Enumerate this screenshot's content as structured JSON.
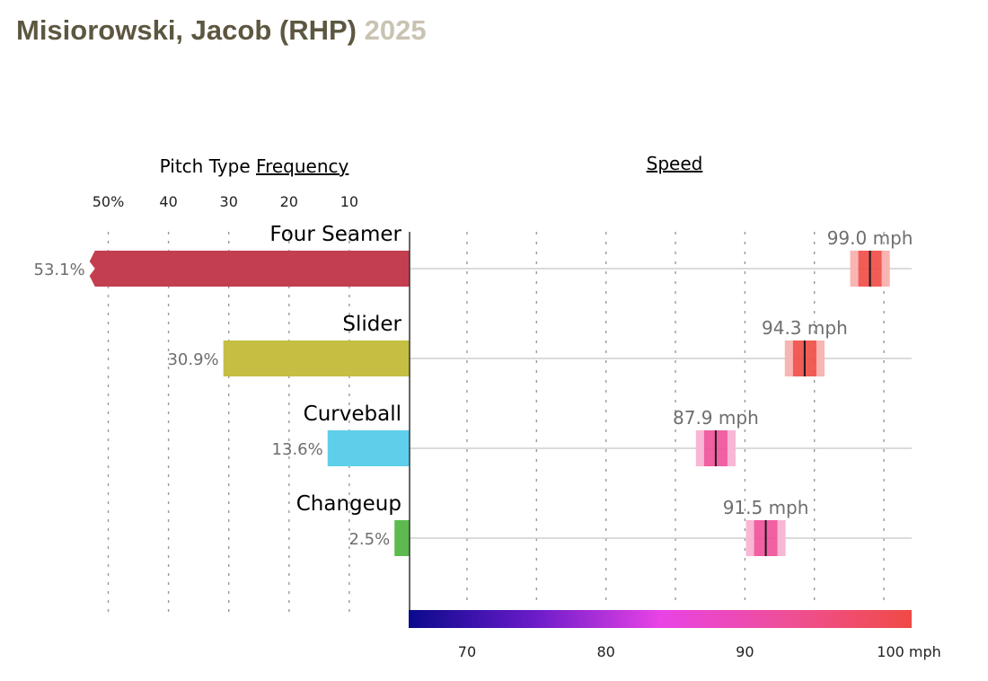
{
  "header": {
    "player": "Misiorowski, Jacob (RHP)",
    "season": "2025"
  },
  "chart_data": {
    "type": "bar",
    "frequency_header": {
      "prefix": "Pitch Type",
      "link": "Frequency"
    },
    "speed_header": "Speed",
    "frequency_ticks": [
      "50%",
      "40",
      "30",
      "20",
      "10"
    ],
    "frequency_tick_values": [
      50,
      40,
      30,
      20,
      10
    ],
    "frequency_xlim": [
      0,
      53.1
    ],
    "speed_ticks": [
      "70",
      "80",
      "90",
      "100 mph"
    ],
    "speed_tick_values": [
      70,
      80,
      90,
      100
    ],
    "speed_xlim": [
      65.8,
      102
    ],
    "colorscale": [
      "#0a0a8c",
      "#6b1bc9",
      "#e943e6",
      "#ef4f98",
      "#f04a45"
    ],
    "pitches": [
      {
        "name": "Four Seamer",
        "frequency": 53.1,
        "frequency_label": "53.1%",
        "speed": 99.0,
        "speed_label": "99.0 mph",
        "color": "#c33f4f",
        "truncated": true
      },
      {
        "name": "Slider",
        "frequency": 30.9,
        "frequency_label": "30.9%",
        "speed": 94.3,
        "speed_label": "94.3 mph",
        "color": "#c4bf42",
        "truncated": false
      },
      {
        "name": "Curveball",
        "frequency": 13.6,
        "frequency_label": "13.6%",
        "speed": 87.9,
        "speed_label": "87.9 mph",
        "color": "#5ecfea",
        "truncated": false
      },
      {
        "name": "Changeup",
        "frequency": 2.5,
        "frequency_label": "2.5%",
        "speed": 91.5,
        "speed_label": "91.5 mph",
        "color": "#5cba4f",
        "truncated": false
      }
    ]
  }
}
